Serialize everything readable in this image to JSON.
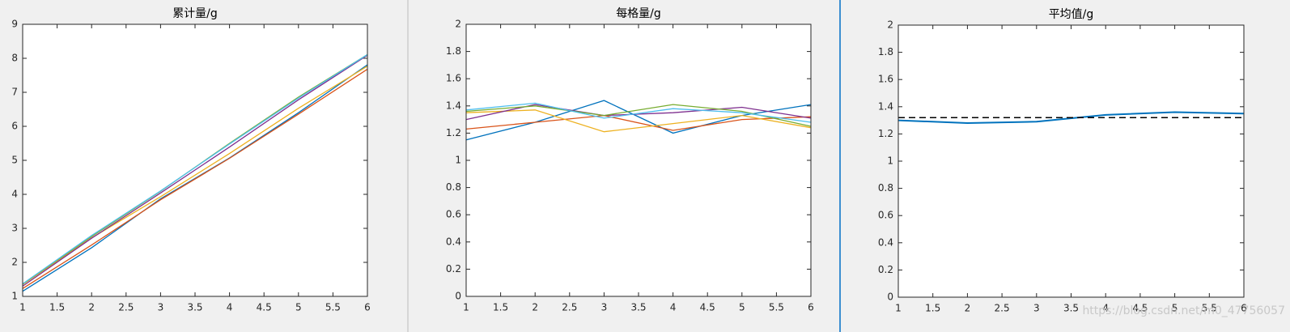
{
  "chart_data": [
    {
      "type": "line",
      "title": "累计量/g",
      "x": [
        1,
        2,
        3,
        4,
        5,
        6
      ],
      "xlim": [
        1,
        6
      ],
      "xticks": [
        1,
        1.5,
        2,
        2.5,
        3,
        3.5,
        4,
        4.5,
        5,
        5.5,
        6
      ],
      "ylim": [
        1,
        9
      ],
      "yticks": [
        1,
        2,
        3,
        4,
        5,
        6,
        7,
        8,
        9
      ],
      "series": [
        {
          "color": "#0072BD",
          "values": [
            1.15,
            2.43,
            3.87,
            5.07,
            6.4,
            7.81
          ]
        },
        {
          "color": "#D95319",
          "values": [
            1.23,
            2.51,
            3.84,
            5.06,
            6.36,
            7.68
          ]
        },
        {
          "color": "#EDB120",
          "values": [
            1.35,
            2.72,
            3.93,
            5.2,
            6.53,
            7.77
          ]
        },
        {
          "color": "#7E2F8E",
          "values": [
            1.3,
            2.71,
            4.04,
            5.39,
            6.78,
            8.09
          ]
        },
        {
          "color": "#77AC30",
          "values": [
            1.36,
            2.76,
            4.09,
            5.5,
            6.86,
            8.11
          ]
        },
        {
          "color": "#4DBEEE",
          "values": [
            1.37,
            2.79,
            4.1,
            5.48,
            6.83,
            8.11
          ]
        }
      ]
    },
    {
      "type": "line",
      "title": "每格量/g",
      "x": [
        1,
        2,
        3,
        4,
        5,
        6
      ],
      "xlim": [
        1,
        6
      ],
      "xticks": [
        1,
        1.5,
        2,
        2.5,
        3,
        3.5,
        4,
        4.5,
        5,
        5.5,
        6
      ],
      "ylim": [
        0,
        2
      ],
      "yticks": [
        0,
        0.2,
        0.4,
        0.6,
        0.8,
        1,
        1.2,
        1.4,
        1.6,
        1.8,
        2
      ],
      "series": [
        {
          "color": "#0072BD",
          "values": [
            1.15,
            1.28,
            1.44,
            1.2,
            1.33,
            1.41
          ]
        },
        {
          "color": "#D95319",
          "values": [
            1.23,
            1.28,
            1.33,
            1.22,
            1.3,
            1.32
          ]
        },
        {
          "color": "#EDB120",
          "values": [
            1.35,
            1.37,
            1.21,
            1.27,
            1.33,
            1.24
          ]
        },
        {
          "color": "#7E2F8E",
          "values": [
            1.3,
            1.41,
            1.33,
            1.35,
            1.39,
            1.31
          ]
        },
        {
          "color": "#77AC30",
          "values": [
            1.36,
            1.4,
            1.33,
            1.41,
            1.36,
            1.25
          ]
        },
        {
          "color": "#4DBEEE",
          "values": [
            1.37,
            1.42,
            1.31,
            1.38,
            1.35,
            1.28
          ]
        }
      ]
    },
    {
      "type": "line",
      "title": "平均值/g",
      "x": [
        1,
        2,
        3,
        4,
        5,
        6
      ],
      "xlim": [
        1,
        6
      ],
      "xticks": [
        1,
        1.5,
        2,
        2.5,
        3,
        3.5,
        4,
        4.5,
        5,
        5.5,
        6
      ],
      "ylim": [
        0,
        2
      ],
      "yticks": [
        0,
        0.2,
        0.4,
        0.6,
        0.8,
        1,
        1.2,
        1.4,
        1.6,
        1.8,
        2
      ],
      "series": [
        {
          "color": "#0072BD",
          "values": [
            1.3,
            1.28,
            1.29,
            1.34,
            1.36,
            1.35
          ]
        }
      ],
      "reference_line": {
        "value": 1.32,
        "color": "#000000",
        "style": "dashed"
      }
    }
  ],
  "watermark": "https://blog.csdn.net/m0_47756057"
}
